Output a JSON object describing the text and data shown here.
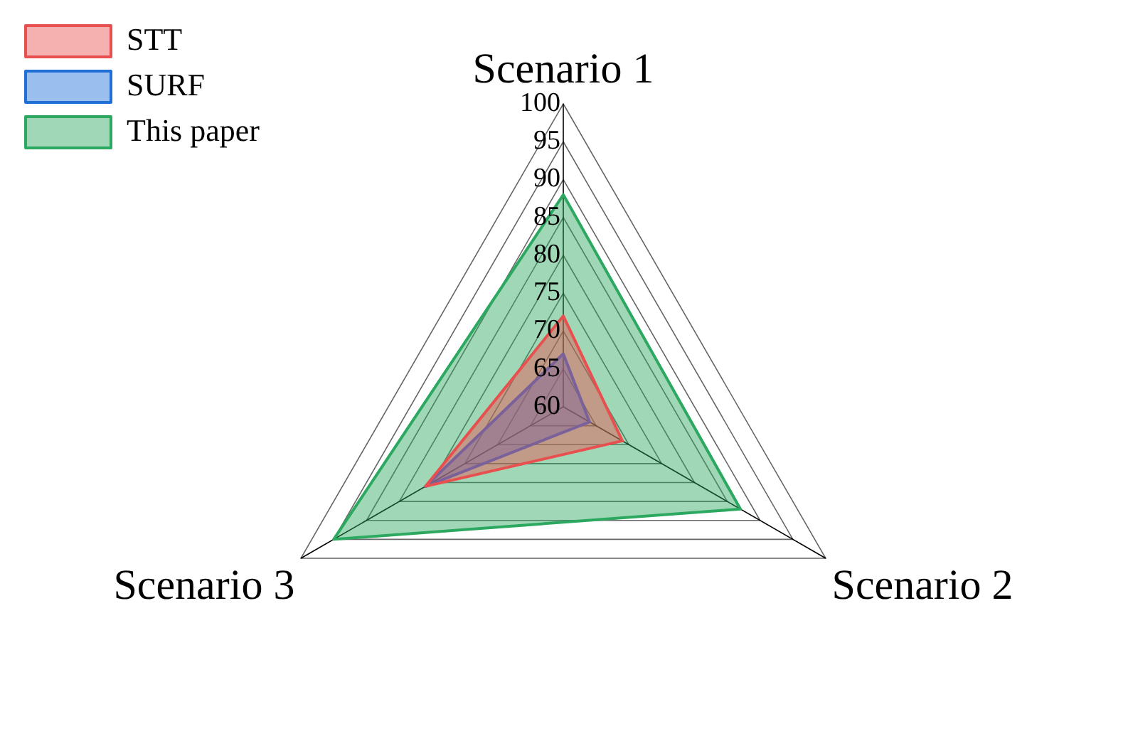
{
  "chart_data": {
    "type": "radar",
    "categories": [
      "Scenario 1",
      "Scenario 2",
      "Scenario 3"
    ],
    "series": [
      {
        "name": "STT",
        "color": "#e85050",
        "values": [
          72,
          69,
          81
        ]
      },
      {
        "name": "SURF",
        "color": "#1f6fd6",
        "values": [
          67,
          64,
          81
        ]
      },
      {
        "name": "This paper",
        "color": "#2ca860",
        "values": [
          88,
          87,
          95
        ]
      }
    ],
    "ylim": [
      60,
      100
    ],
    "yticks": [
      60,
      65,
      70,
      75,
      80,
      85,
      90,
      95,
      100
    ],
    "grid": true,
    "legend": "top left"
  }
}
